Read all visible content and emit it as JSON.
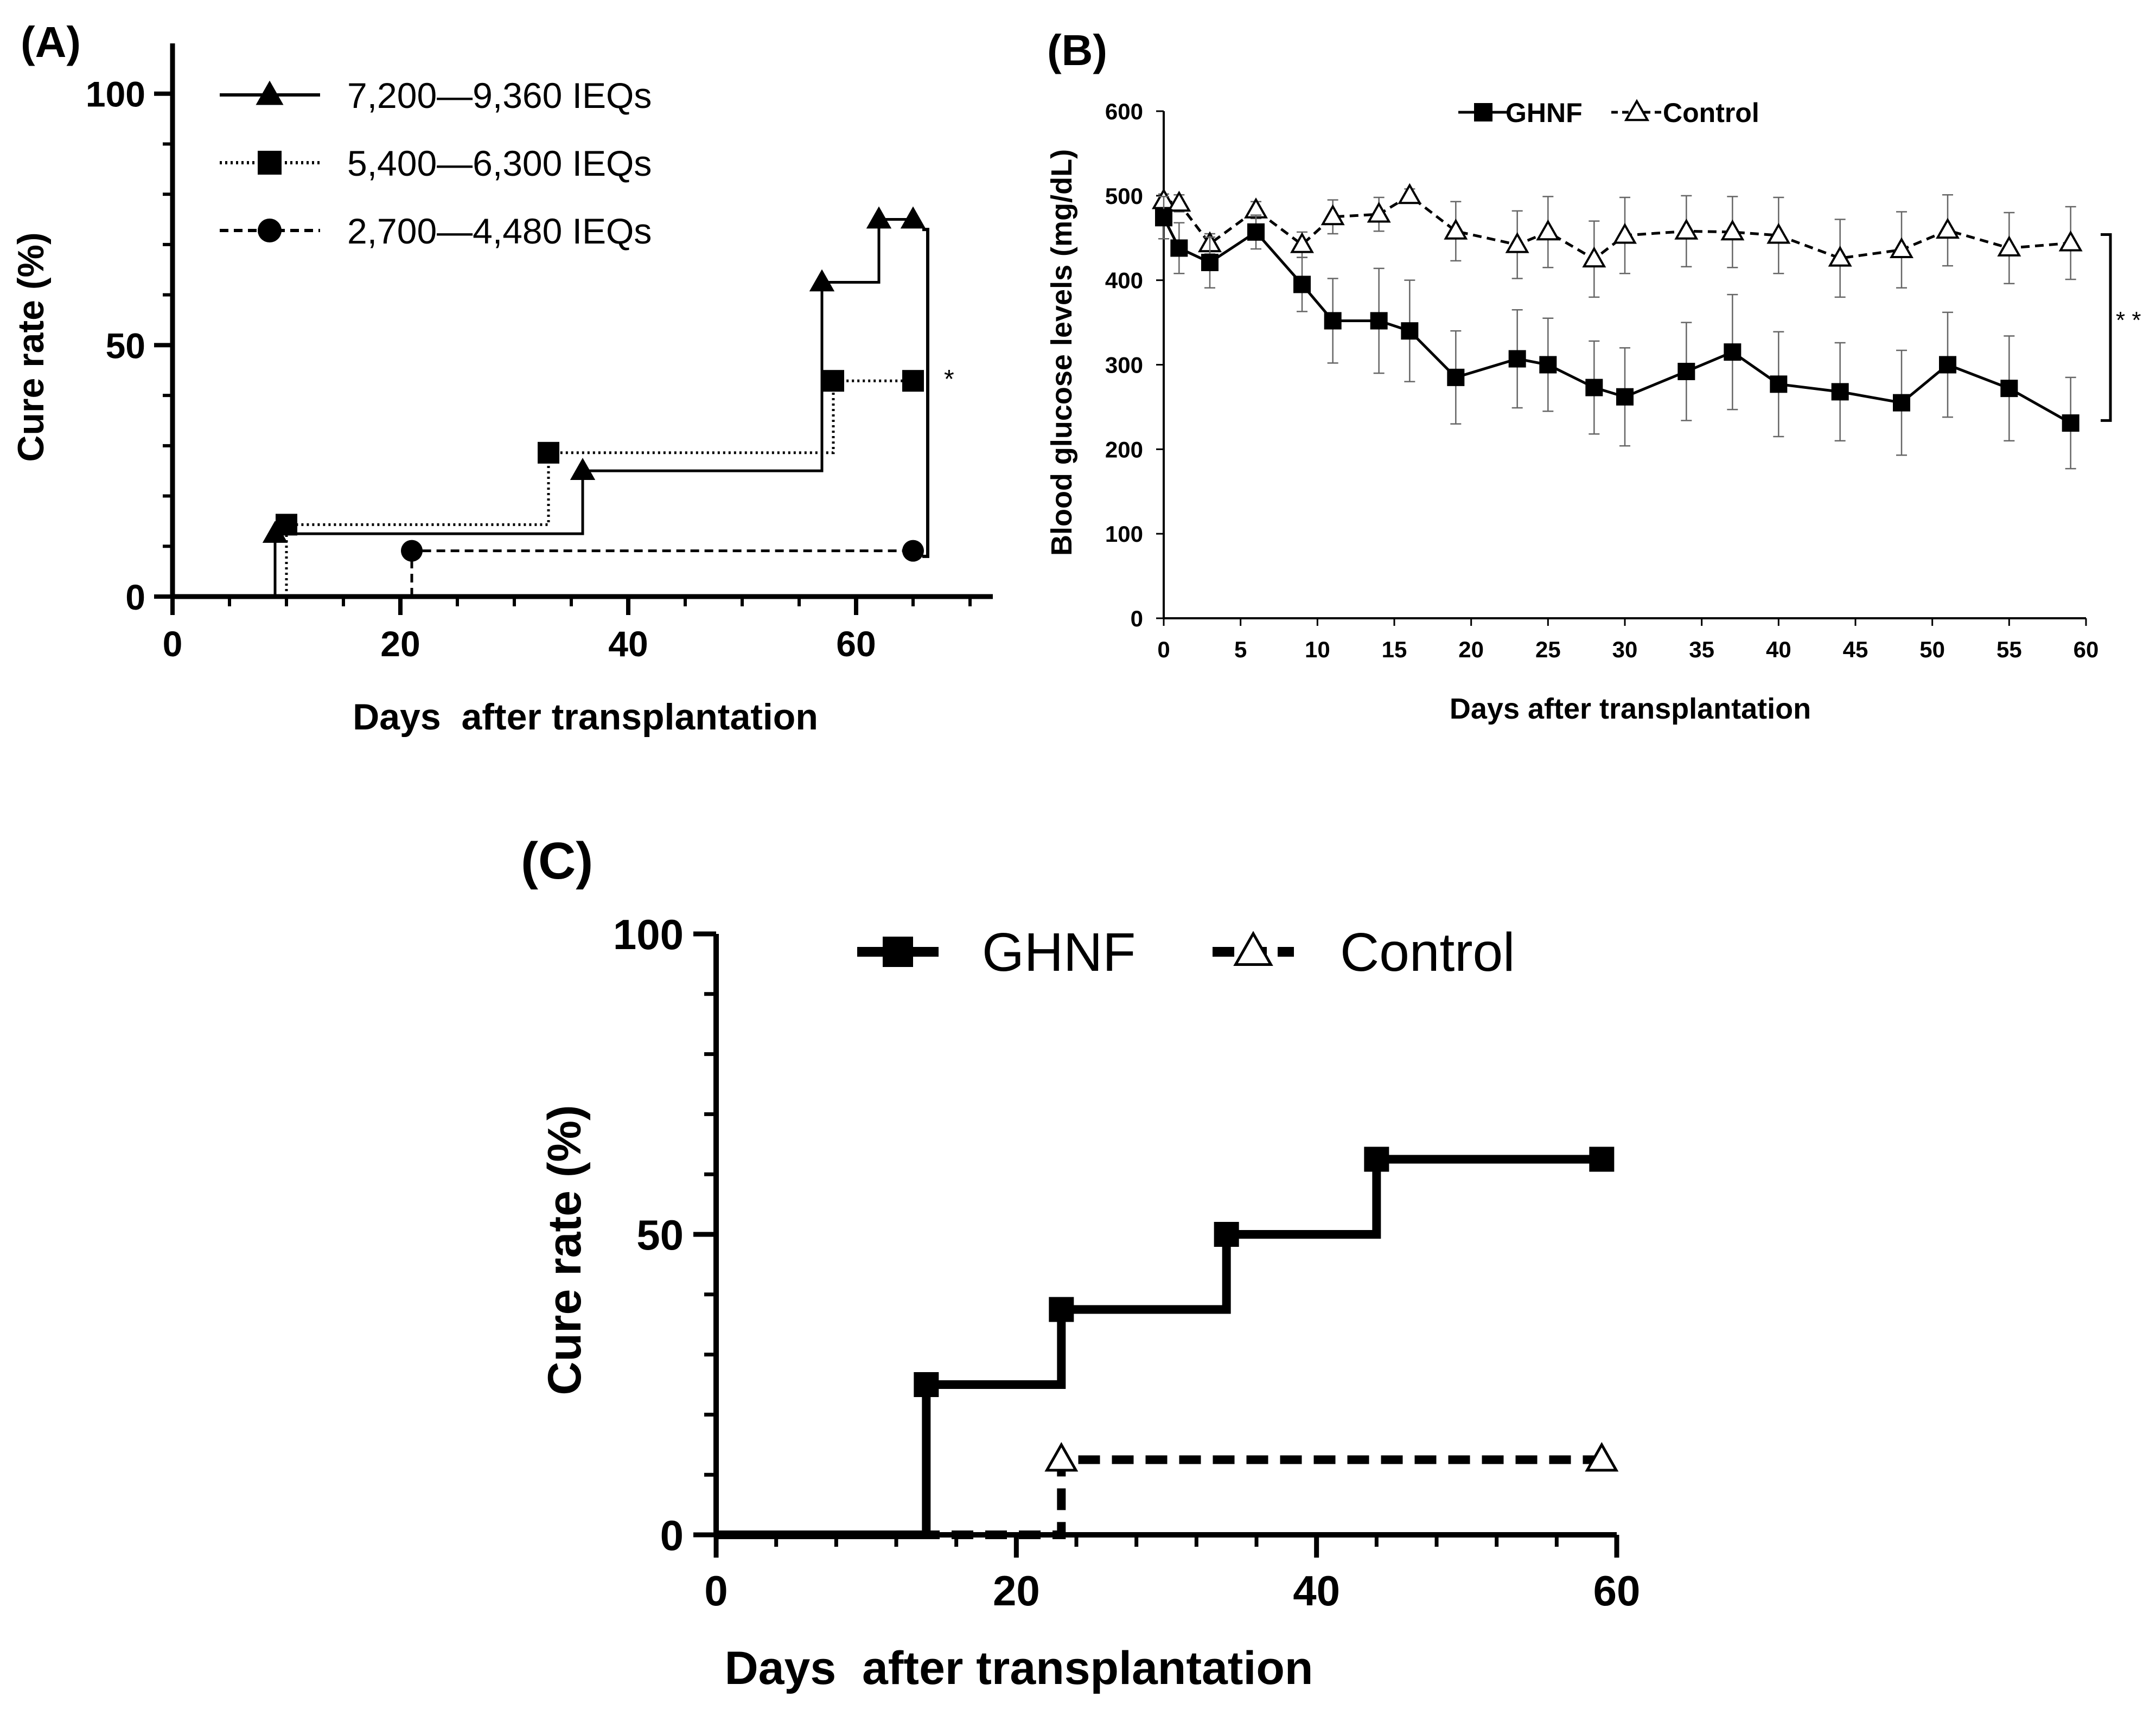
{
  "chart_data": [
    {
      "panel_label": "(A)",
      "type": "line",
      "subtype": "step",
      "xlabel": "Days  after transplantation",
      "ylabel": "Cure rate (%)",
      "xlim": [
        0,
        72
      ],
      "ylim": [
        0,
        110
      ],
      "xticks": [
        "0",
        "20",
        "40",
        "60"
      ],
      "yticks": [
        "0",
        "50",
        "100"
      ],
      "series": [
        {
          "name": "7,200—9,360 IEQs",
          "marker": "triangle",
          "style": "solid",
          "x": [
            9,
            36,
            57,
            62,
            65
          ],
          "y": [
            12.5,
            25,
            62.5,
            75,
            75
          ]
        },
        {
          "name": "5,400—6,300 IEQs",
          "marker": "square",
          "style": "dotted",
          "x": [
            10,
            33,
            58,
            65
          ],
          "y": [
            14.3,
            28.6,
            42.9,
            42.9
          ]
        },
        {
          "name": "2,700—4,480 IEQs",
          "marker": "circle",
          "style": "dashed",
          "x": [
            21,
            65
          ],
          "y": [
            9.1,
            9.1
          ]
        }
      ],
      "annotation": "*"
    },
    {
      "panel_label": "(B)",
      "type": "line",
      "xlabel": "Days after transplantation",
      "ylabel": "Blood glucose levels (mg/dL)",
      "xlim": [
        0,
        60
      ],
      "ylim": [
        0,
        600
      ],
      "xticks": [
        "0",
        "5",
        "10",
        "15",
        "20",
        "25",
        "30",
        "35",
        "40",
        "45",
        "50",
        "55",
        "60"
      ],
      "yticks": [
        "0",
        "100",
        "200",
        "300",
        "400",
        "500",
        "600"
      ],
      "series": [
        {
          "name": "GHNF",
          "marker": "square",
          "style": "solid",
          "x": [
            0,
            1,
            3,
            6,
            9,
            11,
            14,
            16,
            19,
            23,
            25,
            28,
            30,
            34,
            37,
            40,
            44,
            48,
            51,
            55,
            59
          ],
          "y": [
            474,
            438,
            421,
            457,
            395,
            352,
            352,
            340,
            285,
            307,
            300,
            273,
            262,
            292,
            315,
            277,
            268,
            255,
            300,
            272,
            231
          ],
          "err": [
            25,
            30,
            30,
            20,
            32,
            50,
            62,
            60,
            55,
            58,
            55,
            55,
            58,
            58,
            68,
            62,
            58,
            62,
            62,
            62,
            54
          ]
        },
        {
          "name": "Control",
          "marker": "triangle-open",
          "style": "dashed",
          "x": [
            0,
            1,
            3,
            6,
            9,
            11,
            14,
            16,
            19,
            23,
            25,
            28,
            30,
            34,
            37,
            40,
            44,
            48,
            51,
            55,
            59
          ],
          "y": [
            494,
            491,
            443,
            483,
            442,
            475,
            478,
            500,
            458,
            442,
            457,
            425,
            453,
            458,
            457,
            453,
            426,
            436,
            459,
            438,
            444
          ],
          "err": [
            8,
            10,
            12,
            10,
            15,
            20,
            20,
            8,
            35,
            40,
            42,
            45,
            45,
            42,
            42,
            45,
            46,
            45,
            42,
            42,
            43
          ]
        }
      ],
      "annotation": "* *"
    },
    {
      "panel_label": "(C)",
      "type": "line",
      "subtype": "step",
      "xlabel": "Days  after transplantation",
      "ylabel": "Cure rate (%)",
      "xlim": [
        0,
        60
      ],
      "ylim": [
        0,
        100
      ],
      "xticks": [
        "0",
        "20",
        "40",
        "60"
      ],
      "yticks": [
        "0",
        "50",
        "100"
      ],
      "series": [
        {
          "name": "GHNF",
          "marker": "square",
          "style": "solid",
          "x": [
            0,
            14,
            23,
            34,
            44,
            59
          ],
          "y": [
            0,
            25,
            37.5,
            50,
            62.5,
            62.5
          ]
        },
        {
          "name": "Control",
          "marker": "triangle-open",
          "style": "dashed",
          "x": [
            0,
            23,
            59
          ],
          "y": [
            0,
            12.5,
            12.5
          ]
        }
      ]
    }
  ]
}
